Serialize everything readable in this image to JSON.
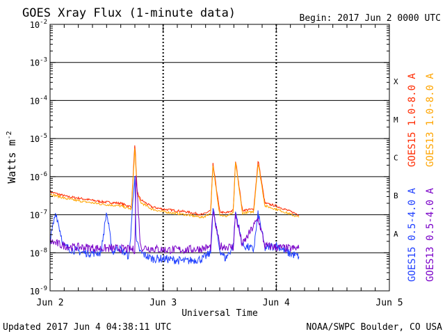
{
  "chart_data": {
    "type": "line",
    "title": "GOES Xray Flux (1-minute data)",
    "begin_label": "Begin:  2017 Jun 2 0000 UTC",
    "xlabel": "Universal Time",
    "ylabel": "Watts m",
    "ylabel_sup": "-2",
    "y_scale": "log",
    "ylim": [
      1e-09,
      0.01
    ],
    "xlim": [
      0,
      3
    ],
    "x_tick_labels": [
      {
        "x": 0,
        "label": "Jun 2"
      },
      {
        "x": 1,
        "label": "Jun 3"
      },
      {
        "x": 2,
        "label": "Jun 4"
      },
      {
        "x": 3,
        "label": "Jun 5"
      }
    ],
    "y_tick_labels": [
      {
        "exp": -2,
        "label": "10",
        "sup": "-2"
      },
      {
        "exp": -3,
        "label": "10",
        "sup": "-3"
      },
      {
        "exp": -4,
        "label": "10",
        "sup": "-4"
      },
      {
        "exp": -5,
        "label": "10",
        "sup": "-5"
      },
      {
        "exp": -6,
        "label": "10",
        "sup": "-6"
      },
      {
        "exp": -7,
        "label": "10",
        "sup": "-7"
      },
      {
        "exp": -8,
        "label": "10",
        "sup": "-8"
      },
      {
        "exp": -9,
        "label": "10",
        "sup": "-9"
      }
    ],
    "flare_classes": [
      {
        "label": "X",
        "exp": -3.5
      },
      {
        "label": "M",
        "exp": -4.5
      },
      {
        "label": "C",
        "exp": -5.5
      },
      {
        "label": "B",
        "exp": -6.5
      },
      {
        "label": "A",
        "exp": -7.5
      }
    ],
    "legend": [
      {
        "name": "GOES15 1.0-8.0 A",
        "color": "#ff2a00"
      },
      {
        "name": "GOES13 1.0-8.0 A",
        "color": "#ffa500"
      },
      {
        "name": "GOES15 0.5-4.0 A",
        "color": "#1f3fff"
      },
      {
        "name": "GOES13 0.5-4.0 A",
        "color": "#7a00c8"
      }
    ],
    "series": [
      {
        "name": "GOES15 1.0-8.0 A",
        "color": "#ff2a00",
        "x": [
          0,
          0.15,
          0.3,
          0.45,
          0.62,
          0.72,
          0.75,
          0.77,
          0.8,
          0.9,
          1.0,
          1.2,
          1.35,
          1.42,
          1.44,
          1.5,
          1.55,
          1.62,
          1.64,
          1.7,
          1.8,
          1.84,
          1.9,
          2.0,
          2.1,
          2.2
        ],
        "y": [
          4e-07,
          3e-07,
          2.6e-07,
          2.2e-07,
          2e-07,
          1.6e-07,
          8e-06,
          4e-07,
          2.5e-07,
          1.6e-07,
          1.4e-07,
          1.2e-07,
          1e-07,
          1.3e-07,
          2.2e-06,
          1.2e-07,
          1.1e-07,
          1.3e-07,
          2.8e-06,
          1.3e-07,
          1.4e-07,
          2.7e-06,
          2e-07,
          1.7e-07,
          1.3e-07,
          1e-07
        ]
      },
      {
        "name": "GOES13 1.0-8.0 A",
        "color": "#ffa500",
        "x": [
          0,
          0.15,
          0.3,
          0.45,
          0.62,
          0.72,
          0.75,
          0.77,
          0.8,
          0.9,
          1.0,
          1.2,
          1.35,
          1.42,
          1.44,
          1.5,
          1.55,
          1.62,
          1.64,
          1.7,
          1.8,
          1.84,
          1.9,
          2.0,
          2.1,
          2.2
        ],
        "y": [
          3.5e-07,
          2.6e-07,
          2.2e-07,
          1.9e-07,
          1.7e-07,
          1.4e-07,
          6e-06,
          3.5e-07,
          2.1e-07,
          1.4e-07,
          1.2e-07,
          1e-07,
          8.5e-08,
          1.1e-07,
          1.9e-06,
          1e-07,
          9e-08,
          1.1e-07,
          2.4e-06,
          1.1e-07,
          1.2e-07,
          2.3e-06,
          1.7e-07,
          1.4e-07,
          1.1e-07,
          8.5e-08
        ]
      },
      {
        "name": "GOES15 0.5-4.0 A",
        "color": "#1f3fff",
        "x": [
          0,
          0.05,
          0.12,
          0.2,
          0.3,
          0.45,
          0.5,
          0.55,
          0.6,
          0.7,
          0.75,
          0.76,
          0.8,
          0.9,
          1.0,
          1.2,
          1.35,
          1.42,
          1.44,
          1.5,
          1.55,
          1.62,
          1.64,
          1.7,
          1.8,
          1.84,
          1.9,
          2.0,
          2.1,
          2.2
        ],
        "y": [
          2e-08,
          1.2e-07,
          1.5e-08,
          1.2e-08,
          1e-08,
          1e-08,
          1.2e-07,
          1e-08,
          1.4e-08,
          8e-09,
          1.4e-06,
          2e-08,
          1e-08,
          7e-09,
          7e-09,
          6e-09,
          7e-09,
          1e-08,
          1.5e-07,
          1.2e-08,
          7e-09,
          1.5e-08,
          1.2e-07,
          1.6e-08,
          1.2e-08,
          1.1e-07,
          1.3e-08,
          1.6e-08,
          1e-08,
          8e-09
        ]
      },
      {
        "name": "GOES13 0.5-4.0 A",
        "color": "#7a00c8",
        "x": [
          0,
          0.1,
          0.2,
          0.3,
          0.45,
          0.6,
          0.75,
          0.76,
          0.8,
          0.9,
          1.0,
          1.2,
          1.35,
          1.42,
          1.44,
          1.5,
          1.62,
          1.64,
          1.7,
          1.84,
          1.9,
          2.0,
          2.1,
          2.2
        ],
        "y": [
          2e-08,
          1.6e-08,
          1.4e-08,
          1.4e-08,
          1.3e-08,
          1.3e-08,
          1.2e-08,
          1.2e-06,
          1.4e-08,
          1.3e-08,
          1.2e-08,
          1.2e-08,
          1.3e-08,
          1.4e-08,
          1.2e-07,
          1.5e-08,
          1.4e-08,
          1e-07,
          1.6e-08,
          8e-08,
          1.5e-08,
          1.4e-08,
          1.3e-08,
          1.3e-08
        ]
      }
    ],
    "footer_left": "Updated 2017 Jun  4 04:38:11 UTC",
    "footer_right": "NOAA/SWPC Boulder, CO USA"
  }
}
